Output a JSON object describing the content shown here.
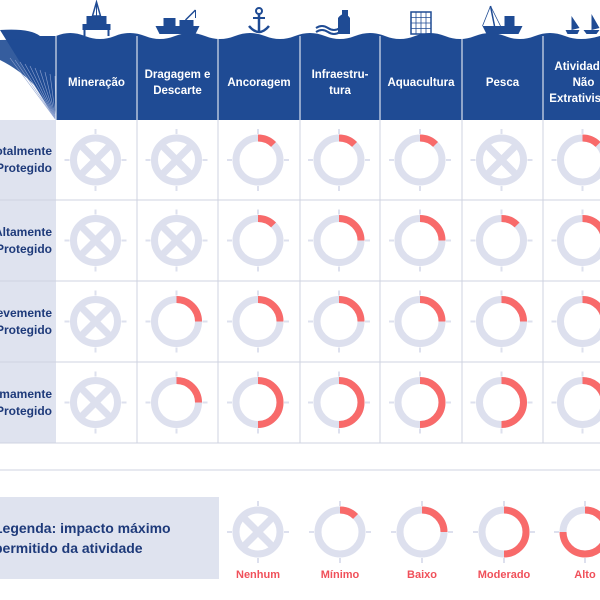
{
  "columns": [
    {
      "label": "Mineração",
      "icon": "oil-rig-icon"
    },
    {
      "label": "Dragagem e Descarte",
      "icon": "dredging-ship-icon"
    },
    {
      "label": "Ancoragem",
      "icon": "anchor-icon"
    },
    {
      "label": "Infraestru-tura",
      "icon": "infrastructure-icon"
    },
    {
      "label": "Aquacultura",
      "icon": "aquaculture-cage-icon"
    },
    {
      "label": "Pesca",
      "icon": "fishing-boat-icon"
    },
    {
      "label": "Atividades Não Extrativistas",
      "icon": "recreation-boats-icon"
    }
  ],
  "rows": [
    {
      "label": "Totalmente Protegido",
      "levels": [
        0,
        0,
        1,
        1,
        1,
        0,
        1
      ]
    },
    {
      "label": "Altamente Protegido",
      "levels": [
        0,
        0,
        1,
        2,
        2,
        1,
        2
      ]
    },
    {
      "label": "Levemente Protegido",
      "levels": [
        0,
        2,
        2,
        2,
        2,
        2,
        2
      ]
    },
    {
      "label": "Minimamente Protegido",
      "levels": [
        0,
        2,
        3,
        3,
        3,
        3,
        2
      ]
    }
  ],
  "legend": {
    "title": "Legenda: impacto máximo permitido da atividade",
    "items": [
      {
        "label": "Nenhum",
        "level": 0
      },
      {
        "label": "Mínimo",
        "level": 1
      },
      {
        "label": "Baixo",
        "level": 2
      },
      {
        "label": "Moderado",
        "level": 3
      },
      {
        "label": "Alto",
        "level": 4
      }
    ],
    "level_fractions": [
      0,
      0.125,
      0.25,
      0.5,
      0.75
    ]
  },
  "colors": {
    "header": "#1f4b94",
    "ring": "#dde0ee",
    "impact": "#f86a6a",
    "row_label_bg": "#dfe3ef",
    "grid": "#cfd3e0",
    "label_text": "#1e3a7a",
    "legend_text": "#f0505a"
  }
}
